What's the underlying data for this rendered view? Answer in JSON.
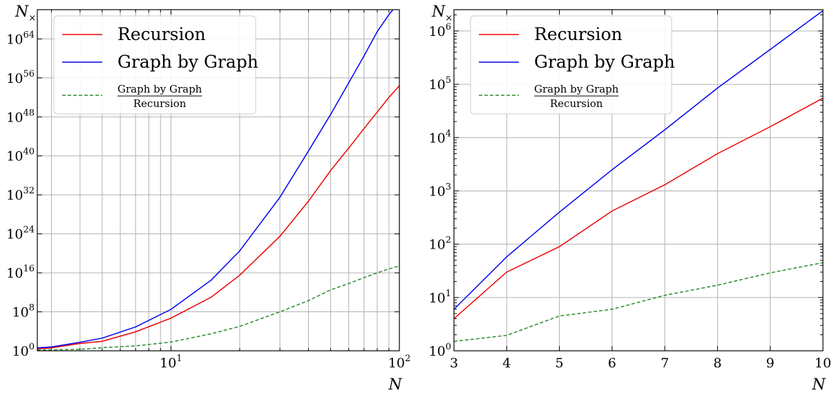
{
  "chart_data": [
    {
      "type": "line",
      "xscale": "log",
      "yscale": "log",
      "xlim": [
        2.6,
        100
      ],
      "ylim_exp": [
        0,
        70
      ],
      "xlabel": "N",
      "ylabel": "N",
      "ylabel_sub": "×",
      "xticks": [
        {
          "base": "10",
          "exp": "1",
          "value": 10
        },
        {
          "base": "10",
          "exp": "2",
          "value": 100
        }
      ],
      "yticks": [
        {
          "base": "10",
          "exp": "0",
          "value_exp": 0
        },
        {
          "base": "10",
          "exp": "8",
          "value_exp": 8
        },
        {
          "base": "10",
          "exp": "16",
          "value_exp": 16
        },
        {
          "base": "10",
          "exp": "24",
          "value_exp": 24
        },
        {
          "base": "10",
          "exp": "32",
          "value_exp": 32
        },
        {
          "base": "10",
          "exp": "40",
          "value_exp": 40
        },
        {
          "base": "10",
          "exp": "48",
          "value_exp": 48
        },
        {
          "base": "10",
          "exp": "56",
          "value_exp": 56
        },
        {
          "base": "10",
          "exp": "64",
          "value_exp": 64
        }
      ],
      "grid": true,
      "legend_position": "top-left",
      "series": [
        {
          "name": "Recursion",
          "color": "#ee0000",
          "style": "solid",
          "x": [
            2.6,
            3,
            4,
            5,
            7,
            10,
            15,
            20,
            30,
            40,
            50,
            60,
            70,
            80,
            90,
            100
          ],
          "y_exp": [
            0.4,
            0.6,
            1.5,
            1.95,
            3.9,
            6.7,
            11.0,
            15.5,
            23.5,
            30.7,
            37.0,
            41.6,
            45.6,
            49.0,
            52.0,
            54.4
          ]
        },
        {
          "name": "Graph by Graph",
          "color": "#0000ee",
          "style": "solid",
          "x": [
            2.6,
            3,
            4,
            5,
            7,
            10,
            15,
            20,
            30,
            40,
            50,
            60,
            70,
            80,
            90,
            100
          ],
          "y_exp": [
            0.6,
            0.8,
            1.75,
            2.6,
            4.9,
            8.5,
            14.5,
            20.5,
            31.5,
            41.0,
            48.5,
            55.0,
            60.5,
            65.5,
            69.0,
            71.6
          ]
        },
        {
          "name_num": "Graph by Graph",
          "name_den": "Recursion",
          "color": "#2a8a2a",
          "style": "dashed",
          "x": [
            2.6,
            3,
            4,
            5,
            7,
            10,
            15,
            20,
            30,
            40,
            50,
            60,
            70,
            80,
            90,
            100
          ],
          "y_exp": [
            0.15,
            0.2,
            0.3,
            0.65,
            1.0,
            1.8,
            3.5,
            5.0,
            8.0,
            10.3,
            12.5,
            13.8,
            15.0,
            16.0,
            16.8,
            17.4
          ]
        }
      ]
    },
    {
      "type": "line",
      "xscale": "linear",
      "yscale": "log",
      "xlim": [
        3,
        10
      ],
      "ylim_exp": [
        0,
        6.4
      ],
      "xlabel": "N",
      "ylabel": "N",
      "ylabel_sub": "×",
      "xticks": [
        {
          "label": "3",
          "value": 3
        },
        {
          "label": "4",
          "value": 4
        },
        {
          "label": "5",
          "value": 5
        },
        {
          "label": "6",
          "value": 6
        },
        {
          "label": "7",
          "value": 7
        },
        {
          "label": "8",
          "value": 8
        },
        {
          "label": "9",
          "value": 9
        },
        {
          "label": "10",
          "value": 10
        }
      ],
      "yticks": [
        {
          "base": "10",
          "exp": "0",
          "value_exp": 0
        },
        {
          "base": "10",
          "exp": "1",
          "value_exp": 1
        },
        {
          "base": "10",
          "exp": "2",
          "value_exp": 2
        },
        {
          "base": "10",
          "exp": "3",
          "value_exp": 3
        },
        {
          "base": "10",
          "exp": "4",
          "value_exp": 4
        },
        {
          "base": "10",
          "exp": "5",
          "value_exp": 5
        },
        {
          "base": "10",
          "exp": "6",
          "value_exp": 6
        }
      ],
      "grid": true,
      "legend_position": "top-left",
      "series": [
        {
          "name": "Recursion",
          "color": "#ee0000",
          "style": "solid",
          "x": [
            3,
            4,
            5,
            6,
            7,
            8,
            9,
            10
          ],
          "y": [
            4,
            30,
            90,
            420,
            1300,
            5000,
            16000,
            55000
          ]
        },
        {
          "name": "Graph by Graph",
          "color": "#0000ee",
          "style": "solid",
          "x": [
            3,
            4,
            5,
            6,
            7,
            8,
            9,
            10
          ],
          "y": [
            6,
            58,
            400,
            2500,
            14000,
            85000,
            450000,
            2400000
          ]
        },
        {
          "name_num": "Graph by Graph",
          "name_den": "Recursion",
          "color": "#2a8a2a",
          "style": "dashed",
          "x": [
            3,
            4,
            5,
            6,
            7,
            8,
            9,
            10
          ],
          "y": [
            1.5,
            1.95,
            4.5,
            6.0,
            11.0,
            17.0,
            29.0,
            45.0
          ]
        }
      ]
    }
  ]
}
